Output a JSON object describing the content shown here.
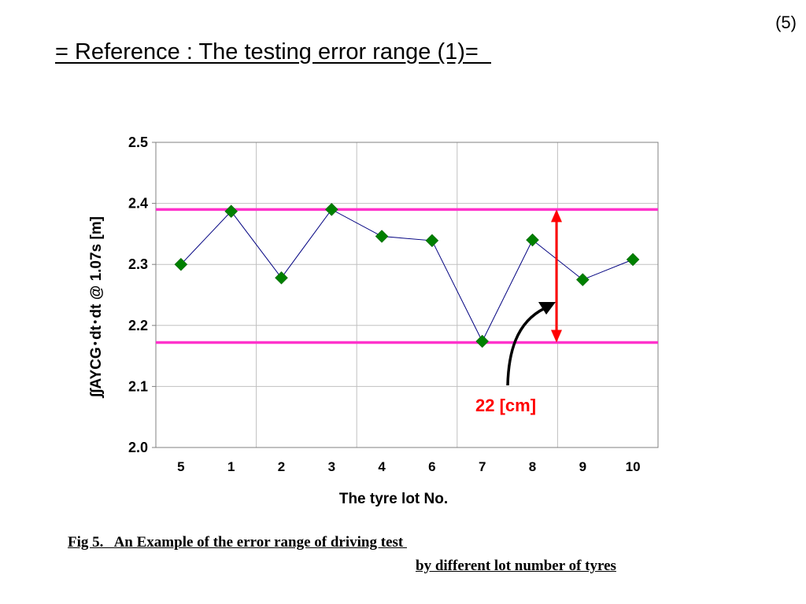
{
  "header": {
    "page_number": "(5)",
    "title": "= Reference : The testing error range (1)=  "
  },
  "chart_data": {
    "type": "scatter",
    "categories": [
      "5",
      "1",
      "2",
      "3",
      "4",
      "6",
      "7",
      "8",
      "9",
      "10"
    ],
    "x": [
      1,
      2,
      3,
      4,
      5,
      6,
      7,
      8,
      9,
      10
    ],
    "series": [
      {
        "values": [
          2.3,
          2.387,
          2.278,
          2.39,
          2.346,
          2.339,
          2.174,
          2.34,
          2.275,
          2.308
        ],
        "color": "#008000",
        "line_color": "#000080",
        "marker": "diamond"
      }
    ],
    "yticks": [
      "2.0",
      "2.1",
      "2.2",
      "2.3",
      "2.4",
      "2.5"
    ],
    "ylim": [
      2.0,
      2.5
    ],
    "xlabel": "The tyre lot No.",
    "ylabel": "∫∫AYCG･dt･dt @ 1.07s  [m]",
    "grid": true,
    "reference_lines": {
      "upper": 2.39,
      "lower": 2.172,
      "color": "#ff33cc"
    },
    "annotation": {
      "text": "22 [cm]",
      "color": "#ff0000",
      "arrow_color": "#ff0000"
    }
  },
  "caption": {
    "line1": "Fig 5.   An Example of the error range of driving test ",
    "line2": "by different lot number of tyres"
  }
}
